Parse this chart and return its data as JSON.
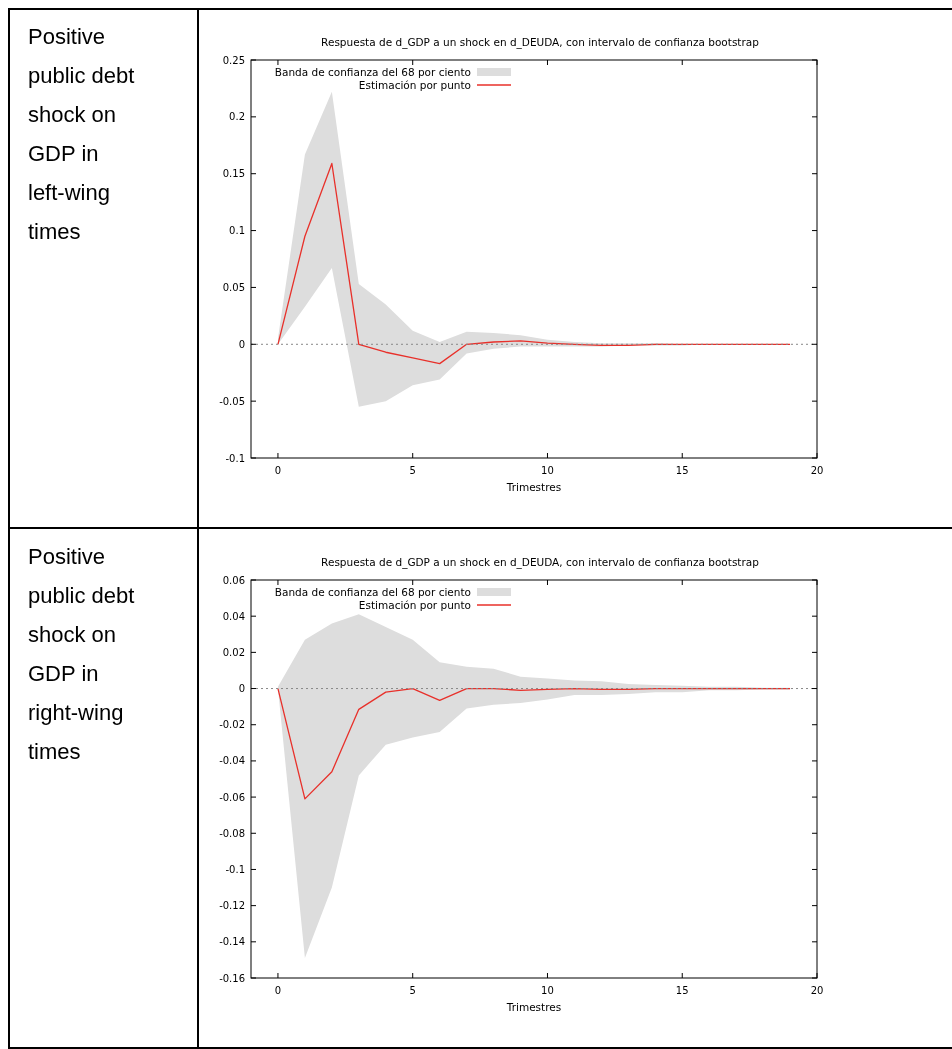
{
  "chart_data": [
    {
      "type": "line",
      "title": "Respuesta de d_GDP a un shock en d_DEUDA, con intervalo de confianza bootstrap",
      "subtitle": "Positive public debt shock on GDP in left-wing times",
      "xlabel": "Trimestres",
      "annotations": [
        "Banda de confianza del 68 por ciento"
      ],
      "x": [
        0,
        1,
        2,
        3,
        4,
        5,
        6,
        7,
        8,
        9,
        10,
        11,
        12,
        13,
        14,
        15,
        16,
        17,
        18,
        19
      ],
      "series": [
        {
          "name": "Estimación por punto",
          "color": "#e8302a",
          "values": [
            0,
            0.095,
            0.159,
            0,
            -0.007,
            -0.012,
            -0.017,
            0,
            0.002,
            0.003,
            0.001,
            0,
            -0.001,
            -0.001,
            0,
            0,
            0,
            0,
            0,
            0
          ],
          "lower": [
            0,
            0.033,
            0.067,
            -0.055,
            -0.05,
            -0.036,
            -0.031,
            -0.008,
            -0.004,
            -0.002,
            -0.002,
            -0.002,
            -0.002,
            -0.001,
            -0.001,
            -0.001,
            0,
            0,
            0,
            0
          ],
          "upper": [
            0.005,
            0.167,
            0.222,
            0.053,
            0.035,
            0.012,
            0.002,
            0.011,
            0.01,
            0.008,
            0.004,
            0.002,
            0.001,
            0.001,
            0.001,
            0,
            0,
            0,
            0,
            0
          ]
        }
      ],
      "xlim": [
        -1,
        20
      ],
      "xticks": [
        0,
        5,
        10,
        15,
        20
      ],
      "ylim": [
        -0.1,
        0.25
      ],
      "yticks": [
        -0.1,
        -0.05,
        0,
        0.05,
        0.1,
        0.15,
        0.2,
        0.25
      ],
      "ref_lines": [
        {
          "axis": "y",
          "value": 0,
          "line_style": "dotted",
          "color": "#888888"
        }
      ],
      "legend": "top left",
      "grid": false
    },
    {
      "type": "line",
      "title": "Respuesta de d_GDP a un shock en d_DEUDA, con intervalo de confianza bootstrap",
      "subtitle": "Positive public debt shock on GDP in right-wing times",
      "xlabel": "Trimestres",
      "annotations": [
        "Banda de confianza del 68 por ciento"
      ],
      "x": [
        0,
        1,
        2,
        3,
        4,
        5,
        6,
        7,
        8,
        9,
        10,
        11,
        12,
        13,
        14,
        15,
        16,
        17,
        18,
        19
      ],
      "series": [
        {
          "name": "Estimación por punto",
          "color": "#e8302a",
          "values": [
            0,
            -0.061,
            -0.046,
            -0.0115,
            -0.002,
            0,
            -0.0065,
            0,
            0,
            -0.001,
            -0.0005,
            0,
            -0.0005,
            -0.0005,
            0,
            0,
            0,
            0,
            0,
            0
          ],
          "lower": [
            0,
            -0.149,
            -0.11,
            -0.048,
            -0.031,
            -0.027,
            -0.024,
            -0.011,
            -0.009,
            -0.008,
            -0.006,
            -0.0035,
            -0.0035,
            -0.003,
            -0.002,
            -0.002,
            -0.001,
            -0.001,
            -0.0005,
            -0.0005
          ],
          "upper": [
            0.001,
            0.027,
            0.036,
            0.041,
            0.034,
            0.027,
            0.0145,
            0.012,
            0.011,
            0.0065,
            0.0055,
            0.0045,
            0.004,
            0.0025,
            0.002,
            0.0015,
            0.001,
            0.001,
            0.0005,
            0.0005
          ]
        }
      ],
      "xlim": [
        -1,
        20
      ],
      "xticks": [
        0,
        5,
        10,
        15,
        20
      ],
      "ylim": [
        -0.16,
        0.06
      ],
      "yticks": [
        -0.16,
        -0.14,
        -0.12,
        -0.1,
        -0.08,
        -0.06,
        -0.04,
        -0.02,
        0,
        0.02,
        0.04,
        0.06
      ],
      "ref_lines": [
        {
          "axis": "y",
          "value": 0,
          "line_style": "dotted",
          "color": "#888888"
        }
      ],
      "legend": "top left",
      "grid": false
    }
  ]
}
